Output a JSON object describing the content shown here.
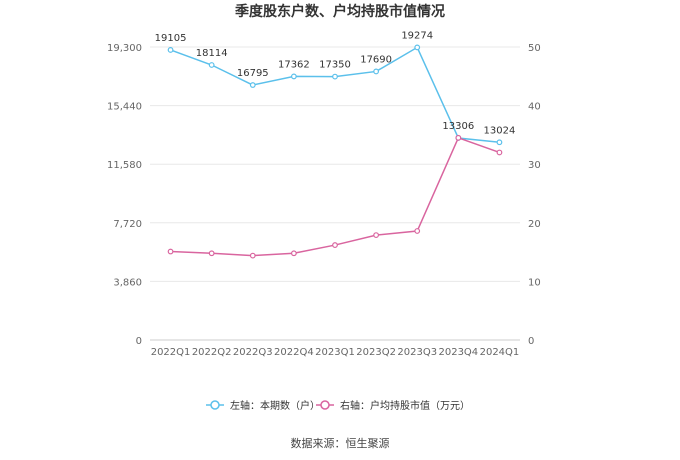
{
  "title": "季度股东户数、户均持股市值情况",
  "source": "数据来源：恒生聚源",
  "chart_data": {
    "type": "line",
    "categories": [
      "2022Q1",
      "2022Q2",
      "2022Q3",
      "2022Q4",
      "2023Q1",
      "2023Q2",
      "2023Q3",
      "2023Q4",
      "2024Q1"
    ],
    "left_axis": {
      "ticks": [
        "0",
        "3,860",
        "7,720",
        "11,580",
        "15,440",
        "19,300"
      ],
      "ylim": [
        0,
        19300
      ]
    },
    "right_axis": {
      "ticks": [
        "0",
        "10",
        "20",
        "30",
        "40",
        "50"
      ],
      "ylim": [
        0,
        50
      ]
    },
    "series": [
      {
        "name": "左轴：本期数（户）",
        "axis": "left",
        "color": "#5bc0eb",
        "values": [
          19105,
          18114,
          16795,
          17362,
          17350,
          17690,
          19274,
          13306,
          13024
        ],
        "labels": [
          "19105",
          "18114",
          "16795",
          "17362",
          "17350",
          "17690",
          "19274",
          "13306",
          "13024"
        ]
      },
      {
        "name": "右轴：户均持股市值（万元）",
        "axis": "right",
        "color": "#d9659f",
        "values": [
          15.1,
          14.8,
          14.4,
          14.8,
          16.2,
          17.9,
          18.6,
          34.5,
          32.0
        ]
      }
    ],
    "legend_position": "bottom",
    "grid": true
  }
}
